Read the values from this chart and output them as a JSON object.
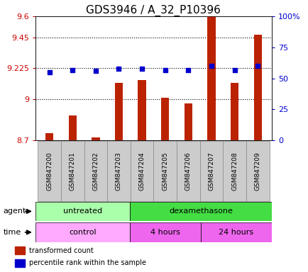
{
  "title": "GDS3946 / A_32_P10396",
  "samples": [
    "GSM847200",
    "GSM847201",
    "GSM847202",
    "GSM847203",
    "GSM847204",
    "GSM847205",
    "GSM847206",
    "GSM847207",
    "GSM847208",
    "GSM847209"
  ],
  "bar_values": [
    8.75,
    8.88,
    8.72,
    9.12,
    9.14,
    9.01,
    8.97,
    9.6,
    9.12,
    9.47
  ],
  "dot_values": [
    55,
    57,
    56,
    58,
    58,
    57,
    57,
    60,
    57,
    60
  ],
  "bar_color": "#bb2200",
  "dot_color": "#0000cc",
  "ylim_left": [
    8.7,
    9.6
  ],
  "ylim_right": [
    0,
    100
  ],
  "yticks_left": [
    8.7,
    9.0,
    9.225,
    9.45,
    9.6
  ],
  "ytick_labels_left": [
    "8.7",
    "9",
    "9.225",
    "9.45",
    "9.6"
  ],
  "yticks_right": [
    0,
    25,
    50,
    75,
    100
  ],
  "ytick_labels_right": [
    "0",
    "25",
    "50",
    "75",
    "100%"
  ],
  "hlines": [
    9.0,
    9.225,
    9.45
  ],
  "agent_groups": [
    {
      "label": "untreated",
      "start": 0,
      "end": 4,
      "color": "#aaffaa"
    },
    {
      "label": "dexamethasone",
      "start": 4,
      "end": 10,
      "color": "#44dd44"
    }
  ],
  "time_groups": [
    {
      "label": "control",
      "start": 0,
      "end": 4,
      "color": "#ffaaff"
    },
    {
      "label": "4 hours",
      "start": 4,
      "end": 7,
      "color": "#ee66ee"
    },
    {
      "label": "24 hours",
      "start": 7,
      "end": 10,
      "color": "#ee66ee"
    }
  ],
  "legend_bar_label": "transformed count",
  "legend_dot_label": "percentile rank within the sample",
  "title_fontsize": 11,
  "tick_fontsize": 8,
  "label_fontsize": 8,
  "sample_fontsize": 6.5,
  "bar_width": 0.35
}
